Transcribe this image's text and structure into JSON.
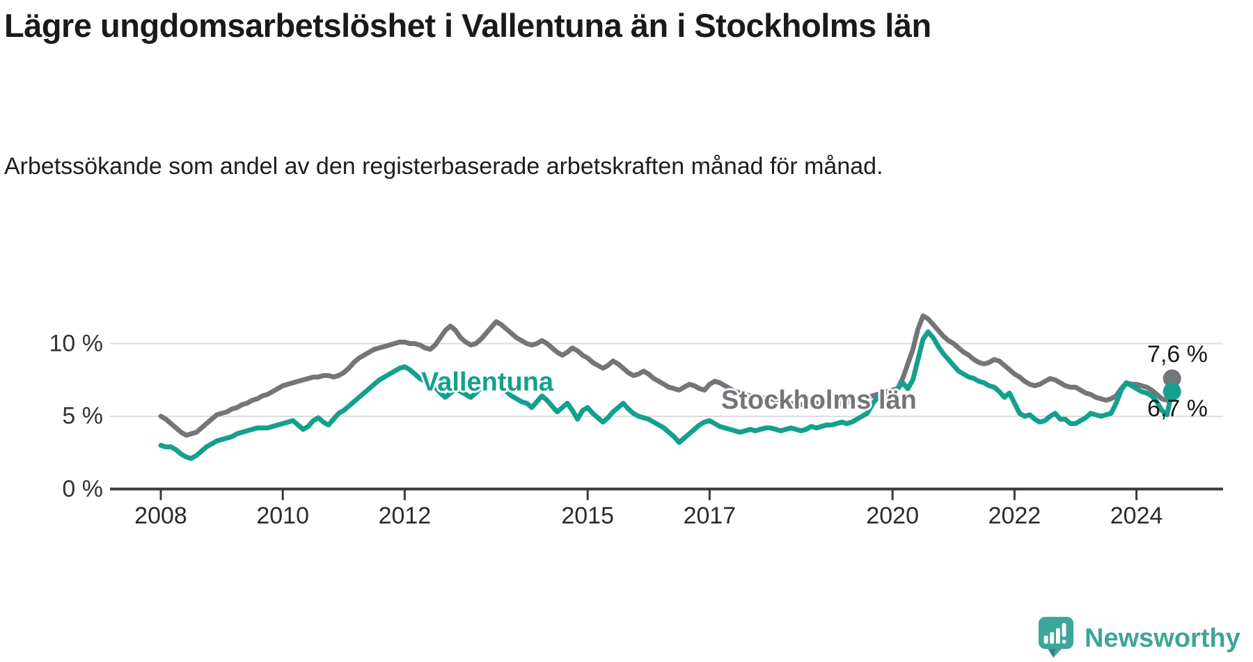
{
  "header": {
    "title": "Lägre ungdomsarbetslöshet i Vallentuna än i Stockholms län",
    "subtitle": "Arbetssökande som andel av den registerbaserade arbetskraften månad för månad."
  },
  "chart_data": {
    "type": "line",
    "unit": "%",
    "x_frequency": "monthly",
    "x_start": "2008-01",
    "x_end": "2024-08",
    "ylim": [
      0,
      12.5
    ],
    "grid": "horizontal",
    "yticks": [
      {
        "value": 0,
        "label": "0 %"
      },
      {
        "value": 5,
        "label": "5 %"
      },
      {
        "value": 10,
        "label": "10 %"
      }
    ],
    "xticks": [
      {
        "year": 2008,
        "label": "2008"
      },
      {
        "year": 2010,
        "label": "2010"
      },
      {
        "year": 2012,
        "label": "2012"
      },
      {
        "year": 2015,
        "label": "2015"
      },
      {
        "year": 2017,
        "label": "2017"
      },
      {
        "year": 2020,
        "label": "2020"
      },
      {
        "year": 2022,
        "label": "2022"
      },
      {
        "year": 2024,
        "label": "2024"
      }
    ],
    "series": [
      {
        "name": "Stockholms län",
        "color": "#747579",
        "end_value": 7.6,
        "end_label": "7,6 %",
        "values": [
          5.0,
          4.8,
          4.5,
          4.2,
          3.9,
          3.7,
          3.8,
          3.9,
          4.2,
          4.5,
          4.8,
          5.1,
          5.2,
          5.3,
          5.5,
          5.6,
          5.8,
          5.9,
          6.1,
          6.2,
          6.4,
          6.5,
          6.7,
          6.9,
          7.1,
          7.2,
          7.3,
          7.4,
          7.5,
          7.6,
          7.7,
          7.7,
          7.8,
          7.8,
          7.7,
          7.8,
          8.0,
          8.3,
          8.7,
          9.0,
          9.2,
          9.4,
          9.6,
          9.7,
          9.8,
          9.9,
          10.0,
          10.1,
          10.1,
          10.0,
          10.0,
          9.9,
          9.7,
          9.6,
          9.9,
          10.4,
          10.9,
          11.2,
          10.9,
          10.4,
          10.1,
          9.9,
          10.0,
          10.3,
          10.7,
          11.1,
          11.5,
          11.3,
          11.0,
          10.7,
          10.4,
          10.2,
          10.0,
          9.9,
          10.0,
          10.2,
          10.0,
          9.7,
          9.4,
          9.2,
          9.4,
          9.7,
          9.5,
          9.2,
          9.0,
          8.7,
          8.5,
          8.3,
          8.5,
          8.8,
          8.6,
          8.3,
          8.0,
          7.8,
          7.9,
          8.1,
          7.9,
          7.6,
          7.4,
          7.2,
          7.0,
          6.9,
          6.8,
          7.0,
          7.2,
          7.1,
          6.9,
          6.8,
          7.2,
          7.4,
          7.3,
          7.1,
          6.9,
          6.7,
          6.6,
          6.5,
          6.4,
          6.4,
          6.3,
          6.2,
          6.2,
          6.1,
          6.0,
          5.9,
          5.9,
          5.8,
          5.8,
          5.9,
          6.0,
          5.9,
          5.8,
          5.8,
          5.8,
          5.8,
          5.9,
          6.0,
          6.0,
          6.1,
          6.2,
          6.3,
          6.4,
          6.5,
          6.6,
          6.7,
          6.8,
          6.9,
          7.6,
          8.6,
          9.6,
          11.0,
          11.9,
          11.7,
          11.3,
          10.9,
          10.5,
          10.2,
          10.0,
          9.7,
          9.4,
          9.2,
          8.9,
          8.7,
          8.6,
          8.7,
          8.9,
          8.8,
          8.5,
          8.2,
          7.9,
          7.7,
          7.4,
          7.2,
          7.1,
          7.2,
          7.4,
          7.6,
          7.5,
          7.3,
          7.1,
          7.0,
          7.0,
          6.8,
          6.6,
          6.5,
          6.3,
          6.2,
          6.1,
          6.2,
          6.4,
          6.9,
          7.3,
          7.2,
          7.2,
          7.1,
          7.0,
          6.8,
          6.5,
          6.2,
          6.1,
          7.6
        ]
      },
      {
        "name": "Vallentuna",
        "color": "#13a08e",
        "end_value": 6.7,
        "end_label": "6,7 %",
        "values": [
          3.0,
          2.9,
          2.9,
          2.7,
          2.4,
          2.2,
          2.1,
          2.3,
          2.6,
          2.9,
          3.1,
          3.3,
          3.4,
          3.5,
          3.6,
          3.8,
          3.9,
          4.0,
          4.1,
          4.2,
          4.2,
          4.2,
          4.3,
          4.4,
          4.5,
          4.6,
          4.7,
          4.4,
          4.1,
          4.3,
          4.7,
          4.9,
          4.6,
          4.4,
          4.8,
          5.2,
          5.4,
          5.7,
          6.0,
          6.3,
          6.6,
          6.9,
          7.2,
          7.5,
          7.7,
          7.9,
          8.1,
          8.3,
          8.4,
          8.2,
          7.9,
          7.6,
          7.4,
          7.2,
          7.0,
          6.6,
          6.3,
          6.6,
          6.9,
          6.7,
          6.5,
          6.3,
          6.6,
          7.0,
          7.4,
          7.7,
          7.4,
          7.0,
          6.7,
          6.4,
          6.2,
          6.0,
          5.9,
          5.6,
          6.0,
          6.4,
          6.1,
          5.7,
          5.3,
          5.6,
          5.9,
          5.4,
          4.8,
          5.4,
          5.6,
          5.2,
          4.9,
          4.6,
          4.9,
          5.3,
          5.6,
          5.9,
          5.5,
          5.2,
          5.0,
          4.9,
          4.8,
          4.6,
          4.4,
          4.2,
          3.9,
          3.6,
          3.2,
          3.5,
          3.8,
          4.1,
          4.4,
          4.6,
          4.7,
          4.5,
          4.3,
          4.2,
          4.1,
          4.0,
          3.9,
          4.0,
          4.1,
          4.0,
          4.1,
          4.2,
          4.2,
          4.1,
          4.0,
          4.1,
          4.2,
          4.1,
          4.0,
          4.1,
          4.3,
          4.2,
          4.3,
          4.4,
          4.4,
          4.5,
          4.6,
          4.5,
          4.6,
          4.8,
          5.0,
          5.2,
          5.8,
          6.3,
          6.0,
          6.3,
          6.6,
          6.9,
          7.3,
          6.9,
          7.5,
          8.9,
          10.3,
          10.8,
          10.4,
          9.8,
          9.3,
          8.9,
          8.5,
          8.1,
          7.9,
          7.7,
          7.6,
          7.4,
          7.3,
          7.1,
          7.0,
          6.7,
          6.3,
          6.6,
          5.9,
          5.2,
          5.0,
          5.1,
          4.8,
          4.6,
          4.7,
          5.0,
          5.2,
          4.8,
          4.8,
          4.5,
          4.5,
          4.7,
          4.9,
          5.2,
          5.1,
          5.0,
          5.1,
          5.2,
          5.9,
          6.8,
          7.3,
          7.1,
          6.9,
          6.7,
          6.6,
          6.4,
          6.0,
          5.4,
          5.1,
          6.7
        ]
      }
    ],
    "styling": {
      "gridline_color": "#dcdcdc",
      "axis_color": "#3a3a3a",
      "text_color": "#1a1a1a"
    }
  },
  "branding": {
    "logo_text": "Newsworthy",
    "logo_color": "#3ea59a"
  }
}
